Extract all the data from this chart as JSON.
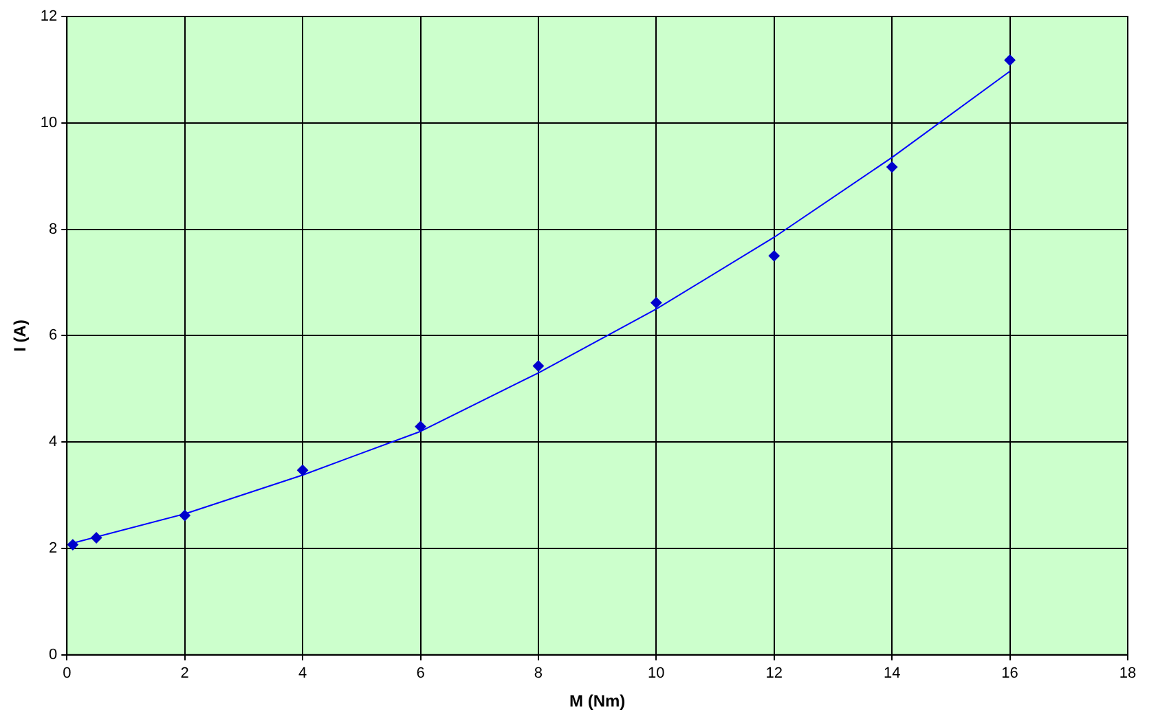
{
  "chart_data": {
    "type": "scatter",
    "xlabel": "M (Nm)",
    "ylabel": "I (A)",
    "xlim": [
      0,
      18
    ],
    "xticks": [
      0,
      2,
      4,
      6,
      8,
      10,
      12,
      14,
      16,
      18
    ],
    "ylim": [
      0,
      12
    ],
    "yticks": [
      0,
      2,
      4,
      6,
      8,
      10,
      12
    ],
    "grid": true,
    "legend": false,
    "marker": "diamond",
    "series": [
      {
        "color": "#0000cc",
        "x": [
          0.1,
          0.5,
          2,
          4,
          6,
          8,
          10,
          12,
          14,
          16
        ],
        "values": [
          2.07,
          2.2,
          2.62,
          3.47,
          4.29,
          5.43,
          6.62,
          7.5,
          9.17,
          11.18
        ]
      },
      {
        "type": "line",
        "color": "#0000ff",
        "marker": "none",
        "x": [
          0.1,
          2,
          4,
          6,
          8,
          10,
          12,
          14,
          16
        ],
        "values": [
          2.1,
          2.65,
          3.38,
          4.2,
          5.3,
          6.5,
          7.85,
          9.35,
          10.97
        ]
      }
    ]
  }
}
